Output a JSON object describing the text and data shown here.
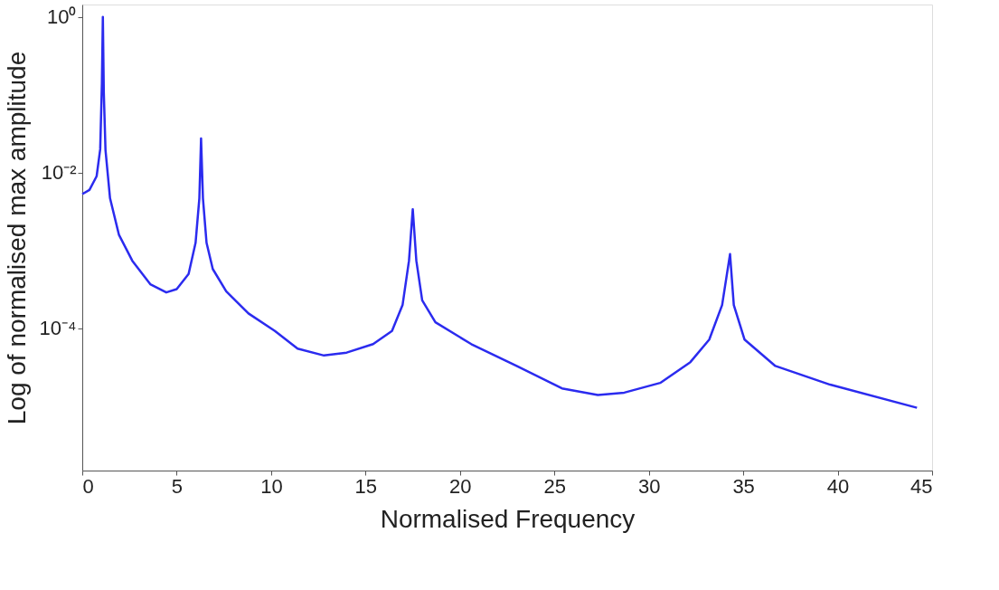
{
  "chart_data": {
    "type": "line",
    "xlabel": "Normalised Frequency",
    "ylabel": "Log of normalised max amplitude",
    "x": [
      0,
      0.38,
      0.76,
      0.95,
      1.04,
      1.09,
      1.14,
      1.23,
      1.47,
      1.94,
      2.65,
      3.6,
      4.45,
      5.0,
      5.63,
      6.0,
      6.2,
      6.29,
      6.39,
      6.58,
      6.91,
      7.62,
      8.8,
      10.2,
      11.4,
      12.8,
      14.0,
      15.4,
      16.4,
      16.96,
      17.3,
      17.5,
      17.69,
      18.0,
      18.7,
      20.6,
      23.0,
      25.4,
      27.3,
      28.7,
      30.6,
      32.2,
      33.2,
      33.88,
      34.3,
      34.5,
      35.07,
      36.7,
      39.6,
      44.2
    ],
    "series": [
      {
        "color": "#2b2bef",
        "values": [
          0.0053,
          0.006,
          0.009,
          0.02,
          0.14,
          1.0,
          0.107,
          0.0195,
          0.0047,
          0.0016,
          0.00074,
          0.00037,
          0.00029,
          0.00032,
          0.0005,
          0.00126,
          0.0047,
          0.0275,
          0.0047,
          0.00126,
          0.00058,
          0.0003,
          0.000156,
          9.3e-05,
          5.5e-05,
          4.5e-05,
          4.9e-05,
          6.3e-05,
          9.3e-05,
          0.0002,
          0.00074,
          0.0034,
          0.00074,
          0.00023,
          0.00012,
          6.3e-05,
          3.3e-05,
          1.7e-05,
          1.4e-05,
          1.5e-05,
          2e-05,
          3.7e-05,
          7.2e-05,
          0.0002,
          0.0009,
          0.0002,
          7.2e-05,
          3.3e-05,
          1.9e-05,
          9.6e-06
        ]
      }
    ],
    "xlim": [
      0,
      45
    ],
    "xticks": [
      0,
      5,
      10,
      15,
      20,
      25,
      30,
      35,
      40,
      45
    ],
    "ylim": [
      1.5e-06,
      1.44
    ],
    "yticks": [
      {
        "value": 1,
        "label": "10⁰"
      },
      {
        "value": 0.01,
        "label": "10⁻²"
      },
      {
        "value": 0.0001,
        "label": "10⁻⁴"
      }
    ],
    "log": "y",
    "grid": false,
    "legend": false,
    "marker": "none",
    "line_style": "solid"
  }
}
